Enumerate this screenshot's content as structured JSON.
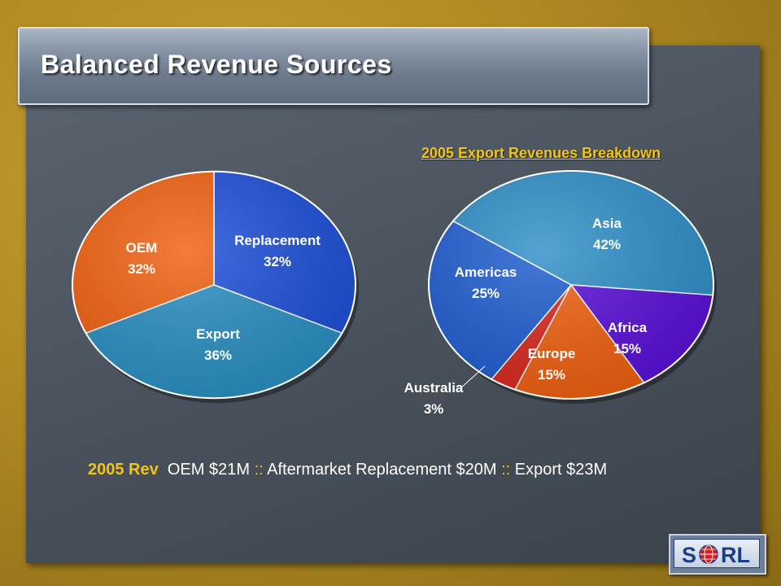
{
  "slide": {
    "title": "Balanced Revenue Sources"
  },
  "chart_data": [
    {
      "type": "pie",
      "title": "",
      "slices": [
        {
          "label": "Replacement",
          "value": 32,
          "value_label": "32%",
          "color": "#1e4fd8"
        },
        {
          "label": "Export",
          "value": 36,
          "value_label": "36%",
          "color": "#2a8fc2"
        },
        {
          "label": "OEM",
          "value": 32,
          "value_label": "32%",
          "color": "#f06010"
        }
      ]
    },
    {
      "type": "pie",
      "title": "2005 Export Revenues Breakdown",
      "slices": [
        {
          "label": "Asia",
          "value": 42,
          "value_label": "42%",
          "color": "#2f8fc8"
        },
        {
          "label": "Africa",
          "value": 15,
          "value_label": "15%",
          "color": "#5a10d8"
        },
        {
          "label": "Europe",
          "value": 15,
          "value_label": "15%",
          "color": "#f06010"
        },
        {
          "label": "Australia",
          "value": 3,
          "value_label": "3%",
          "color": "#d8281e"
        },
        {
          "label": "Americas",
          "value": 25,
          "value_label": "25%",
          "color": "#1f5dd0"
        }
      ]
    }
  ],
  "revenue_line": {
    "prefix": "2005 Rev",
    "oem": "OEM $21M",
    "sep1": "::",
    "replacement": "Aftermarket Replacement $20M",
    "sep2": "::",
    "export": "Export $23M"
  },
  "logo": {
    "text": "S  RL",
    "icon": "globe-icon"
  }
}
